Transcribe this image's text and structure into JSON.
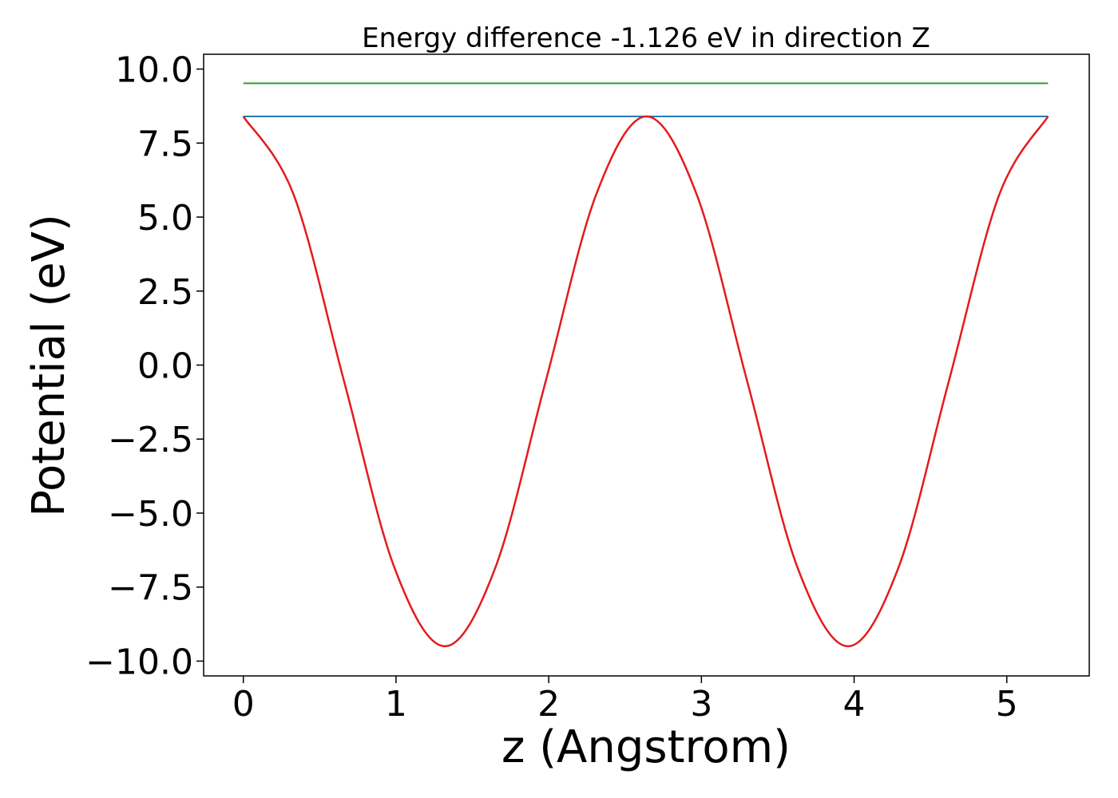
{
  "chart_data": {
    "type": "line",
    "title": "Energy difference -1.126 eV in direction Z",
    "xlabel": "z (Angstrom)",
    "ylabel": "Potential (eV)",
    "xlim": [
      -0.26,
      5.54
    ],
    "ylim": [
      -10.5,
      10.5
    ],
    "xticks": [
      0,
      1,
      2,
      3,
      4,
      5
    ],
    "xtick_labels": [
      "0",
      "1",
      "2",
      "3",
      "4",
      "5"
    ],
    "yticks": [
      10,
      7.5,
      5,
      2.5,
      0,
      -2.5,
      -5,
      -7.5,
      -10
    ],
    "ytick_labels": [
      "10.0",
      "7.5",
      "5.0",
      "2.5",
      "0.0",
      "−2.5",
      "−5.0",
      "−7.5",
      "−10.0"
    ],
    "grid": false,
    "series": [
      {
        "color": "#2ca02c",
        "x": [
          0,
          5.27
        ],
        "y": [
          9.52,
          9.52
        ]
      },
      {
        "color": "#1f77b4",
        "x": [
          0,
          5.27
        ],
        "y": [
          8.4,
          8.4
        ]
      },
      {
        "color": "#e41a1c",
        "x": [
          0,
          0.33,
          0.66,
          0.99,
          1.32,
          1.65,
          1.98,
          2.31,
          2.64,
          2.97,
          3.3,
          3.63,
          3.96,
          4.29,
          4.62,
          4.95,
          5.27
        ],
        "y": [
          8.4,
          5.75,
          -0.55,
          -6.85,
          -9.5,
          -6.85,
          -0.55,
          5.75,
          8.4,
          5.75,
          -0.55,
          -6.85,
          -9.5,
          -6.85,
          -0.55,
          5.75,
          8.4
        ]
      }
    ]
  }
}
